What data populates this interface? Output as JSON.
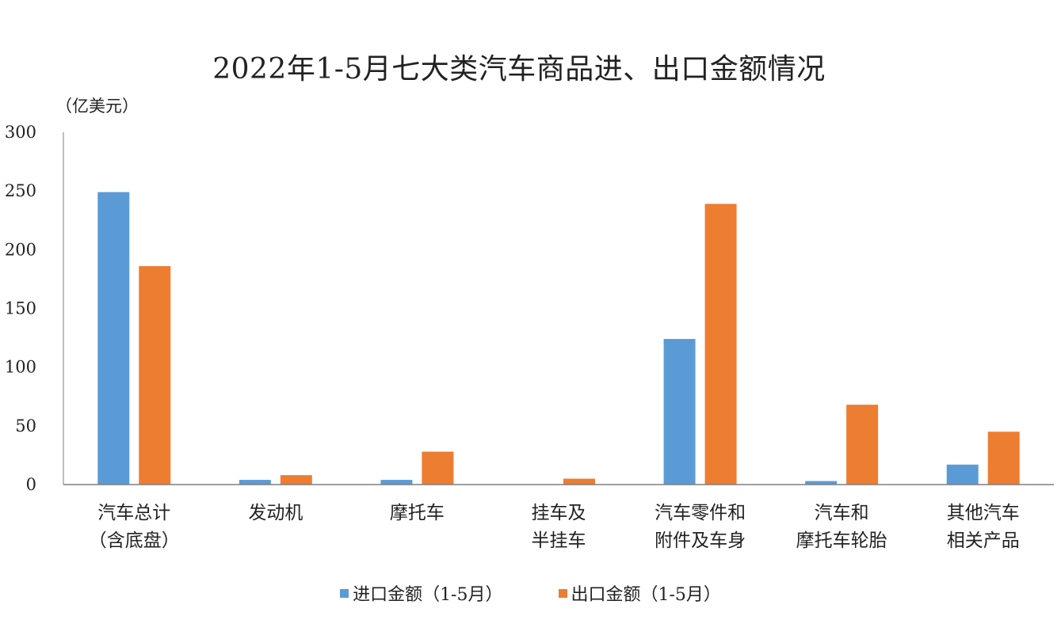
{
  "chart_data": {
    "type": "bar",
    "title": "2022年1-5月七大类汽车商品进、出口金额情况",
    "unit": "（亿美元）",
    "ylim": [
      0,
      300
    ],
    "yticks": [
      "0",
      "50",
      "100",
      "150",
      "200",
      "250",
      "300"
    ],
    "grid": false,
    "legend_position": "bottom",
    "categories": [
      [
        "汽车总计",
        "（含底盘）"
      ],
      [
        "发动机"
      ],
      [
        "摩托车"
      ],
      [
        "挂车及",
        "半挂车"
      ],
      [
        "汽车零件和",
        "附件及车身"
      ],
      [
        "汽车和",
        "摩托车轮胎"
      ],
      [
        "其他汽车",
        "相关产品"
      ]
    ],
    "series": [
      {
        "name": "进口金额（1-5月）",
        "color": "#5B9BD5",
        "values": [
          249,
          4,
          4,
          0,
          124,
          3,
          17
        ]
      },
      {
        "name": "出口金额（1-5月）",
        "color": "#ED7D31",
        "values": [
          186,
          8,
          28,
          5,
          239,
          68,
          45
        ]
      }
    ]
  }
}
